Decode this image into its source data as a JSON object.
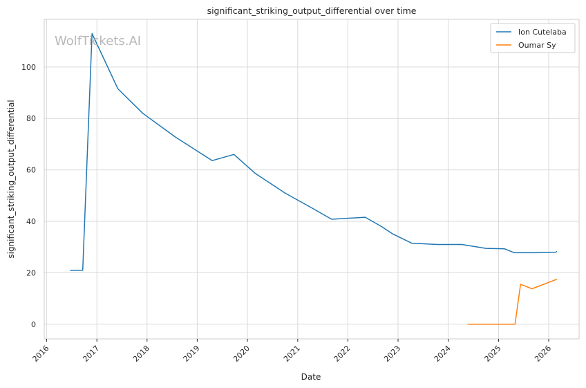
{
  "chart_data": {
    "type": "line",
    "title": "significant_striking_output_differential over time",
    "xlabel": "Date",
    "ylabel": "significant_striking_output_differential",
    "watermark": "WolfTickets.AI",
    "xlim": [
      "2015-12-15",
      "2026-08-10"
    ],
    "ylim": [
      -5.7,
      118.5
    ],
    "x_ticks": [
      "2016",
      "2017",
      "2018",
      "2019",
      "2020",
      "2021",
      "2022",
      "2023",
      "2024",
      "2025",
      "2026"
    ],
    "y_ticks": [
      0,
      20,
      40,
      60,
      80,
      100
    ],
    "grid": true,
    "legend_position": "top-right",
    "series": [
      {
        "name": "Ion Cutelaba",
        "color": "#1f77b4",
        "points": [
          [
            "2016-06-20",
            21.0
          ],
          [
            "2016-09-20",
            21.0
          ],
          [
            "2016-11-27",
            113.0
          ],
          [
            "2017-06-03",
            91.5
          ],
          [
            "2017-12-01",
            82.0
          ],
          [
            "2018-07-25",
            72.8
          ],
          [
            "2019-04-20",
            63.6
          ],
          [
            "2019-09-25",
            66.0
          ],
          [
            "2020-02-28",
            58.6
          ],
          [
            "2020-10-01",
            51.0
          ],
          [
            "2021-04-20",
            45.0
          ],
          [
            "2021-09-05",
            40.8
          ],
          [
            "2022-05-07",
            41.6
          ],
          [
            "2022-09-01",
            38.0
          ],
          [
            "2022-11-20",
            35.2
          ],
          [
            "2023-04-10",
            31.5
          ],
          [
            "2023-10-15",
            31.0
          ],
          [
            "2024-04-10",
            31.0
          ],
          [
            "2024-10-01",
            29.5
          ],
          [
            "2025-02-15",
            29.3
          ],
          [
            "2025-04-25",
            27.8
          ],
          [
            "2025-10-01",
            27.8
          ],
          [
            "2026-02-20",
            28.0
          ],
          [
            "2026-03-02",
            28.3
          ]
        ]
      },
      {
        "name": "Oumar Sy",
        "color": "#ff7f0e",
        "points": [
          [
            "2024-05-20",
            0.0
          ],
          [
            "2025-05-01",
            0.0
          ],
          [
            "2025-06-10",
            15.5
          ],
          [
            "2025-09-01",
            13.8
          ],
          [
            "2026-03-02",
            17.5
          ]
        ]
      }
    ]
  }
}
